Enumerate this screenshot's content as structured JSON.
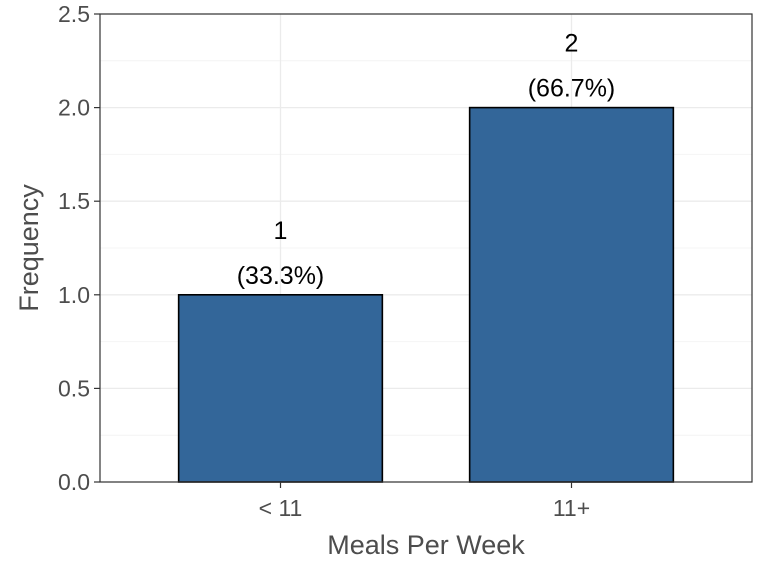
{
  "chart_data": {
    "type": "bar",
    "categories": [
      "< 11",
      "11+"
    ],
    "values": [
      1,
      2
    ],
    "data_labels": [
      {
        "count": "1",
        "percent": "(33.3%)"
      },
      {
        "count": "2",
        "percent": "(66.7%)"
      }
    ],
    "xlabel": "Meals Per Week",
    "ylabel": "Frequency",
    "ylim": [
      0,
      2.5
    ],
    "yticks": [
      0.0,
      0.5,
      1.0,
      1.5,
      2.0,
      2.5
    ],
    "ytick_labels": [
      "0.0",
      "0.5",
      "1.0",
      "1.5",
      "2.0",
      "2.5"
    ],
    "grid": true,
    "colors": {
      "bar_fill": "#336699",
      "bar_stroke": "#000000",
      "grid_major": "#ebebeb",
      "grid_minor": "#f4f4f4",
      "panel_border": "#333333",
      "text": "#4d4d4d"
    }
  }
}
